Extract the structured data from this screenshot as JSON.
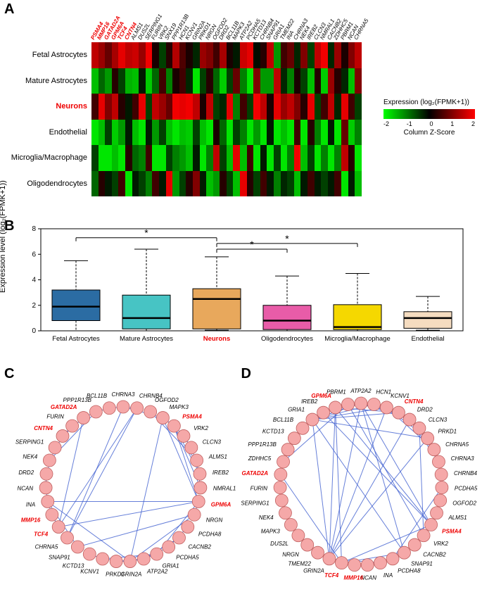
{
  "panelA": {
    "label": "A",
    "genes": [
      "PSMA4",
      "MMP16",
      "GATAD2A",
      "GPM6A",
      "TCF4",
      "CNTN4",
      "ALMS1",
      "DUS2L",
      "SERPING1",
      "FURIN",
      "VRK2",
      "SNX19",
      "PPP1R13B",
      "HCN1",
      "KCNV1",
      "GRIN2A",
      "PRKD1",
      "NRGN",
      "OGFOD2",
      "DRD2",
      "BCL11B",
      "MAPK3",
      "ATP2A2",
      "PCDHA5",
      "KCTD13",
      "CHRNB4",
      "SNAP91",
      "GRIA1",
      "TMEM22",
      "INA",
      "CHRNA3",
      "NEK4",
      "IREB2",
      "CLCN3",
      "NMRAL1",
      "CACNB2",
      "ZDHHC5",
      "PBRM1",
      "NCAN",
      "CHRNA5"
    ],
    "redGenes": [
      "PSMA4",
      "MMP16",
      "GATAD2A",
      "GPM6A",
      "TCF4",
      "CNTN4"
    ],
    "rows": [
      "Fetal Astrocytes",
      "Mature Astrocytes",
      "Neurons",
      "Endothelial",
      "Microglia/Macrophage",
      "Oligodendrocytes"
    ],
    "redRows": [
      "Neurons"
    ],
    "cellWidth": 9.6,
    "heatmap": [
      [
        1.5,
        1.2,
        0.8,
        1.3,
        1.8,
        1.5,
        1.6,
        1.2,
        1.9,
        0.2,
        -0.5,
        0.3,
        1.4,
        0.6,
        0.2,
        -0.3,
        1.2,
        1.0,
        0.5,
        1.3,
        0.2,
        -0.2,
        1.6,
        1.8,
        -0.1,
        0.3,
        1.5,
        -1.2,
        0.5,
        0.8,
        -0.3,
        1.0,
        -0.5,
        1.5,
        1.9,
        -0.3,
        1.2,
        0.2,
        1.0,
        1.5
      ],
      [
        -1.5,
        -0.8,
        -1.2,
        0.3,
        -0.5,
        -1.4,
        -1.5,
        -0.2,
        -1.6,
        -0.8,
        0.5,
        -1.0,
        0.2,
        0.5,
        -0.3,
        -1.8,
        -0.5,
        0.3,
        -0.8,
        -1.6,
        -0.5,
        0.8,
        -1.0,
        -1.8,
        1.0,
        -1.2,
        -1.2,
        1.5,
        -0.3,
        -1.0,
        0.2,
        -0.5,
        -1.5,
        0.3,
        -1.6,
        1.2,
        0.3,
        -0.3,
        -1.5,
        1.0
      ],
      [
        0.5,
        1.8,
        1.0,
        1.5,
        0.3,
        -0.2,
        0.5,
        1.8,
        -0.5,
        1.5,
        1.2,
        0.8,
        1.9,
        1.8,
        1.9,
        1.5,
        0.2,
        1.5,
        -0.5,
        -0.3,
        1.8,
        -1.0,
        0.5,
        -0.5,
        1.9,
        1.5,
        0.2,
        1.8,
        1.2,
        1.5,
        1.0,
        0.3,
        1.8,
        -0.5,
        0.5,
        1.5,
        -0.3,
        1.8,
        0.5,
        -0.5
      ],
      [
        -1.8,
        -1.5,
        -0.5,
        -1.6,
        -1.2,
        -0.2,
        -1.5,
        -1.8,
        -0.2,
        -1.2,
        -0.5,
        -1.5,
        -1.8,
        -1.5,
        -1.6,
        -0.5,
        -1.5,
        -1.8,
        0.2,
        -0.8,
        -1.8,
        -0.5,
        -1.0,
        -1.8,
        -1.2,
        -1.8,
        -0.2,
        -1.8,
        -1.5,
        -1.8,
        0.5,
        -1.8,
        0.3,
        -1.0,
        -1.8,
        -0.2,
        -1.8,
        0.8,
        -1.6,
        -1.0
      ],
      [
        -0.5,
        -1.8,
        -1.8,
        -1.5,
        -1.8,
        0.3,
        -0.8,
        -1.0,
        0.5,
        -1.8,
        -1.8,
        -0.5,
        -1.0,
        -1.2,
        -1.5,
        -0.2,
        -1.8,
        -1.0,
        1.5,
        -0.5,
        -1.5,
        1.8,
        -1.5,
        0.5,
        -1.8,
        -0.2,
        -1.8,
        -0.5,
        -1.8,
        -1.0,
        1.9,
        -1.5,
        -0.5,
        -1.8,
        -1.0,
        -1.8,
        -1.0,
        1.5,
        0.3,
        -1.8
      ],
      [
        -0.8,
        0.3,
        -0.2,
        -0.5,
        0.5,
        -1.8,
        -0.2,
        -0.5,
        -1.0,
        0.5,
        -0.2,
        1.8,
        -1.2,
        -0.5,
        0.3,
        1.0,
        -0.2,
        -1.5,
        -1.2,
        0.3,
        -0.5,
        -1.5,
        1.8,
        0.3,
        -0.5,
        0.5,
        -0.2,
        -1.0,
        -0.3,
        -0.5,
        -1.5,
        -0.2,
        0.5,
        -0.2,
        -0.5,
        -0.2,
        0.5,
        -1.8,
        -0.2,
        -1.5
      ]
    ],
    "legendTitle": "Expression (log₂(FPMK+1))",
    "legendTicks": [
      "-2",
      "-1",
      "0",
      "1",
      "2"
    ],
    "legendSubtitle": "Column Z-Score"
  },
  "panelB": {
    "label": "B",
    "ylabel": "Expression level (log₂(FPMK+1))",
    "ylim": [
      0,
      8
    ],
    "yticks": [
      0,
      2,
      4,
      6,
      8
    ],
    "boxes": [
      {
        "label": "Fetal Astrocytes",
        "q1": 0.8,
        "median": 1.9,
        "q3": 3.2,
        "whLo": 0.0,
        "whHi": 5.5,
        "color": "#2b6ca3"
      },
      {
        "label": "Mature Astrocytes",
        "q1": 0.15,
        "median": 1.0,
        "q3": 2.8,
        "whLo": 0.0,
        "whHi": 6.4,
        "color": "#47c4c4"
      },
      {
        "label": "Neurons",
        "q1": 0.15,
        "median": 2.5,
        "q3": 3.3,
        "whLo": 0.05,
        "whHi": 5.8,
        "color": "#e8a85c"
      },
      {
        "label": "Oligodendrocytes",
        "q1": 0.1,
        "median": 0.8,
        "q3": 2.0,
        "whLo": 0.0,
        "whHi": 4.3,
        "color": "#e85ca8"
      },
      {
        "label": "Microglia/Macrophage",
        "q1": 0.1,
        "median": 0.3,
        "q3": 2.05,
        "whLo": 0.0,
        "whHi": 4.5,
        "color": "#f5d800"
      },
      {
        "label": "Endothelial",
        "q1": 0.2,
        "median": 1.0,
        "q3": 1.5,
        "whLo": 0.05,
        "whHi": 2.7,
        "color": "#f5dcc0"
      }
    ],
    "redLabels": [
      "Neurons"
    ],
    "sigMarks": [
      {
        "from": 0,
        "to": 2,
        "y": 7.3,
        "label": "*"
      },
      {
        "from": 2,
        "to": 3,
        "y": 6.4,
        "label": "*"
      },
      {
        "from": 2,
        "to": 4,
        "y": 6.85,
        "label": "*"
      }
    ]
  },
  "panelC": {
    "label": "C",
    "nodes": [
      "CHRNA3",
      "CHRNB4",
      "OGFOD2",
      "MAPK3",
      "PSMA4",
      "VRK2",
      "CLCN3",
      "ALMS1",
      "IREB2",
      "NMRAL1",
      "GPM6A",
      "NRGN",
      "PCDHA8",
      "CACNB2",
      "PCDHA5",
      "GRIA1",
      "ATP2A2",
      "GRIN2A",
      "PRKD1",
      "KCNV1",
      "KCTD13",
      "SNAP91",
      "CHRNA5",
      "TCF4",
      "MMP16",
      "INA",
      "NCAN",
      "DRD2",
      "NEK4",
      "SERPING1",
      "CNTN4",
      "FURIN",
      "GATAD2A",
      "PPP1R13B",
      "BCL11B"
    ],
    "redNodes": [
      "PSMA4",
      "GPM6A",
      "GATAD2A",
      "CNTN4",
      "TCF4",
      "MMP16"
    ],
    "edges": [
      [
        0,
        3
      ],
      [
        0,
        1
      ],
      [
        0,
        22
      ],
      [
        1,
        22
      ],
      [
        1,
        23
      ],
      [
        2,
        7
      ],
      [
        3,
        10
      ],
      [
        3,
        17
      ],
      [
        4,
        9
      ],
      [
        4,
        5
      ],
      [
        4,
        8
      ],
      [
        5,
        6
      ],
      [
        6,
        8
      ],
      [
        7,
        9
      ],
      [
        10,
        11
      ],
      [
        10,
        23
      ],
      [
        10,
        25
      ],
      [
        11,
        17
      ],
      [
        12,
        14
      ],
      [
        13,
        15
      ],
      [
        13,
        16
      ],
      [
        15,
        16
      ],
      [
        15,
        17
      ],
      [
        15,
        19
      ],
      [
        16,
        17
      ],
      [
        17,
        18
      ],
      [
        17,
        19
      ],
      [
        19,
        20
      ],
      [
        21,
        25
      ],
      [
        23,
        24
      ],
      [
        23,
        32
      ],
      [
        24,
        25
      ],
      [
        25,
        26
      ],
      [
        26,
        27
      ],
      [
        27,
        29
      ],
      [
        28,
        33
      ],
      [
        29,
        31
      ],
      [
        30,
        31
      ],
      [
        30,
        32
      ],
      [
        32,
        33
      ],
      [
        33,
        34
      ],
      [
        0,
        34
      ],
      [
        10,
        15
      ],
      [
        4,
        10
      ],
      [
        3,
        4
      ],
      [
        17,
        25
      ],
      [
        11,
        21
      ]
    ]
  },
  "panelD": {
    "label": "D",
    "nodes": [
      "ATP2A2",
      "HCN1",
      "KCNV1",
      "CNTN4",
      "DRD2",
      "CLCN3",
      "PRKD1",
      "CHRNA5",
      "CHRNA3",
      "CHRNB4",
      "PCDHA5",
      "OGFOD2",
      "ALMS1",
      "PSMA4",
      "VRK2",
      "CACNB2",
      "SNAP91",
      "PCDHA8",
      "INA",
      "NCAN",
      "MMP16",
      "TCF4",
      "GRIN2A",
      "TMEM22",
      "NRGN",
      "DUS2L",
      "MAPK3",
      "NEK4",
      "SERPING1",
      "FURIN",
      "GATAD2A",
      "ZDHHC5",
      "PPP1R13B",
      "KCTD13",
      "BCL11B",
      "GRIA1",
      "IREB2",
      "GPM6A",
      "PBRM1"
    ],
    "redNodes": [
      "CNTN4",
      "PSMA4",
      "GPM6A",
      "GATAD2A",
      "TCF4",
      "MMP16"
    ],
    "edges": [
      [
        0,
        1
      ],
      [
        0,
        2
      ],
      [
        0,
        3
      ],
      [
        0,
        4
      ],
      [
        0,
        16
      ],
      [
        1,
        2
      ],
      [
        1,
        4
      ],
      [
        2,
        3
      ],
      [
        2,
        6
      ],
      [
        2,
        7
      ],
      [
        3,
        4
      ],
      [
        3,
        5
      ],
      [
        3,
        35
      ],
      [
        4,
        7
      ],
      [
        4,
        8
      ],
      [
        5,
        14
      ],
      [
        6,
        22
      ],
      [
        7,
        8
      ],
      [
        7,
        9
      ],
      [
        8,
        9
      ],
      [
        10,
        17
      ],
      [
        11,
        12
      ],
      [
        13,
        14
      ],
      [
        13,
        36
      ],
      [
        13,
        37
      ],
      [
        14,
        15
      ],
      [
        15,
        16
      ],
      [
        16,
        18
      ],
      [
        16,
        21
      ],
      [
        17,
        19
      ],
      [
        18,
        19
      ],
      [
        18,
        20
      ],
      [
        19,
        20
      ],
      [
        20,
        21
      ],
      [
        21,
        22
      ],
      [
        21,
        30
      ],
      [
        22,
        24
      ],
      [
        22,
        35
      ],
      [
        23,
        24
      ],
      [
        24,
        25
      ],
      [
        25,
        26
      ],
      [
        26,
        27
      ],
      [
        27,
        28
      ],
      [
        28,
        29
      ],
      [
        29,
        30
      ],
      [
        30,
        31
      ],
      [
        30,
        32
      ],
      [
        31,
        32
      ],
      [
        32,
        33
      ],
      [
        33,
        34
      ],
      [
        34,
        35
      ],
      [
        35,
        36
      ],
      [
        35,
        0
      ],
      [
        36,
        37
      ],
      [
        37,
        0
      ],
      [
        37,
        21
      ],
      [
        3,
        37
      ],
      [
        4,
        22
      ],
      [
        0,
        22
      ],
      [
        13,
        21
      ],
      [
        2,
        22
      ],
      [
        18,
        22
      ],
      [
        1,
        35
      ],
      [
        6,
        35
      ],
      [
        0,
        35
      ],
      [
        16,
        35
      ],
      [
        38,
        31
      ],
      [
        38,
        14
      ],
      [
        13,
        0
      ],
      [
        37,
        22
      ],
      [
        2,
        35
      ]
    ]
  }
}
